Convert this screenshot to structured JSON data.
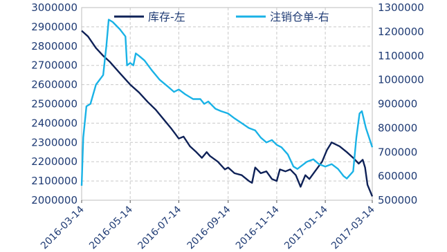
{
  "colors": {
    "series_inventory": "#0e2157",
    "series_cancelled": "#19b2e6",
    "axis_text": "#1f3b74",
    "grid": "#c8c8c8"
  },
  "chart_data": {
    "type": "line",
    "title": "",
    "xlabel": "",
    "ylabel_left": "",
    "ylabel_right": "",
    "ylim_left": [
      2000000,
      3000000
    ],
    "ylim_right": [
      500000,
      1300000
    ],
    "yticks_left": [
      "3000000",
      "2900000",
      "2800000",
      "2700000",
      "2600000",
      "2500000",
      "2400000",
      "2300000",
      "2200000",
      "2100000",
      "2000000"
    ],
    "yticks_right": [
      "1300000",
      "1200000",
      "1100000",
      "1000000",
      "900000",
      "800000",
      "700000",
      "600000",
      "500000"
    ],
    "x_tick_labels": [
      "2016-03-14",
      "2016-05-14",
      "2016-07-14",
      "2016-09-14",
      "2016-11-14",
      "2017-01-14",
      "2017-03-14"
    ],
    "xlim": [
      "2016-03-14",
      "2017-03-14"
    ],
    "grid": true,
    "legend": {
      "placement": "top",
      "entries": [
        "库存-左",
        "注销仓单-右"
      ]
    },
    "series": [
      {
        "name": "库存-左",
        "axis": "left",
        "points": [
          [
            "2016-03-14",
            2880000
          ],
          [
            "2016-03-22",
            2850000
          ],
          [
            "2016-04-01",
            2790000
          ],
          [
            "2016-04-10",
            2750000
          ],
          [
            "2016-04-18",
            2720000
          ],
          [
            "2016-05-01",
            2660000
          ],
          [
            "2016-05-14",
            2600000
          ],
          [
            "2016-05-25",
            2560000
          ],
          [
            "2016-06-05",
            2510000
          ],
          [
            "2016-06-15",
            2470000
          ],
          [
            "2016-06-25",
            2420000
          ],
          [
            "2016-07-05",
            2370000
          ],
          [
            "2016-07-14",
            2320000
          ],
          [
            "2016-07-20",
            2330000
          ],
          [
            "2016-07-28",
            2280000
          ],
          [
            "2016-08-05",
            2250000
          ],
          [
            "2016-08-12",
            2220000
          ],
          [
            "2016-08-18",
            2250000
          ],
          [
            "2016-08-22",
            2230000
          ],
          [
            "2016-09-01",
            2200000
          ],
          [
            "2016-09-10",
            2160000
          ],
          [
            "2016-09-14",
            2170000
          ],
          [
            "2016-09-22",
            2140000
          ],
          [
            "2016-10-01",
            2130000
          ],
          [
            "2016-10-10",
            2100000
          ],
          [
            "2016-10-14",
            2090000
          ],
          [
            "2016-10-18",
            2170000
          ],
          [
            "2016-10-25",
            2140000
          ],
          [
            "2016-11-01",
            2150000
          ],
          [
            "2016-11-08",
            2110000
          ],
          [
            "2016-11-14",
            2100000
          ],
          [
            "2016-11-18",
            2160000
          ],
          [
            "2016-11-25",
            2150000
          ],
          [
            "2016-12-01",
            2160000
          ],
          [
            "2016-12-08",
            2130000
          ],
          [
            "2016-12-14",
            2070000
          ],
          [
            "2016-12-20",
            2130000
          ],
          [
            "2016-12-25",
            2110000
          ],
          [
            "2017-01-01",
            2150000
          ],
          [
            "2017-01-10",
            2200000
          ],
          [
            "2017-01-16",
            2260000
          ],
          [
            "2017-01-22",
            2300000
          ],
          [
            "2017-02-01",
            2280000
          ],
          [
            "2017-02-10",
            2250000
          ],
          [
            "2017-02-18",
            2220000
          ],
          [
            "2017-02-25",
            2190000
          ],
          [
            "2017-03-02",
            2210000
          ],
          [
            "2017-03-05",
            2170000
          ],
          [
            "2017-03-08",
            2080000
          ],
          [
            "2017-03-14",
            2020000
          ]
        ]
      },
      {
        "name": "注销仓单-右",
        "axis": "right",
        "points": [
          [
            "2016-03-14",
            560000
          ],
          [
            "2016-03-16",
            760000
          ],
          [
            "2016-03-20",
            890000
          ],
          [
            "2016-03-25",
            900000
          ],
          [
            "2016-04-01",
            980000
          ],
          [
            "2016-04-10",
            1020000
          ],
          [
            "2016-04-14",
            1140000
          ],
          [
            "2016-04-17",
            1250000
          ],
          [
            "2016-04-22",
            1240000
          ],
          [
            "2016-05-01",
            1210000
          ],
          [
            "2016-05-08",
            1180000
          ],
          [
            "2016-05-10",
            1060000
          ],
          [
            "2016-05-14",
            1070000
          ],
          [
            "2016-05-18",
            1060000
          ],
          [
            "2016-05-21",
            1110000
          ],
          [
            "2016-05-25",
            1100000
          ],
          [
            "2016-06-01",
            1080000
          ],
          [
            "2016-06-10",
            1040000
          ],
          [
            "2016-06-20",
            1000000
          ],
          [
            "2016-07-01",
            970000
          ],
          [
            "2016-07-08",
            950000
          ],
          [
            "2016-07-14",
            960000
          ],
          [
            "2016-07-22",
            940000
          ],
          [
            "2016-08-01",
            920000
          ],
          [
            "2016-08-10",
            920000
          ],
          [
            "2016-08-15",
            900000
          ],
          [
            "2016-08-20",
            910000
          ],
          [
            "2016-08-29",
            880000
          ],
          [
            "2016-09-05",
            870000
          ],
          [
            "2016-09-14",
            860000
          ],
          [
            "2016-09-22",
            840000
          ],
          [
            "2016-10-01",
            820000
          ],
          [
            "2016-10-10",
            800000
          ],
          [
            "2016-10-18",
            790000
          ],
          [
            "2016-10-25",
            760000
          ],
          [
            "2016-11-01",
            740000
          ],
          [
            "2016-11-08",
            750000
          ],
          [
            "2016-11-14",
            730000
          ],
          [
            "2016-11-20",
            720000
          ],
          [
            "2016-11-28",
            690000
          ],
          [
            "2016-12-05",
            640000
          ],
          [
            "2016-12-10",
            630000
          ],
          [
            "2016-12-14",
            640000
          ],
          [
            "2016-12-22",
            660000
          ],
          [
            "2016-12-30",
            670000
          ],
          [
            "2017-01-06",
            650000
          ],
          [
            "2017-01-14",
            640000
          ],
          [
            "2017-01-22",
            650000
          ],
          [
            "2017-01-30",
            630000
          ],
          [
            "2017-02-06",
            600000
          ],
          [
            "2017-02-10",
            590000
          ],
          [
            "2017-02-18",
            620000
          ],
          [
            "2017-02-22",
            760000
          ],
          [
            "2017-02-26",
            860000
          ],
          [
            "2017-03-01",
            870000
          ],
          [
            "2017-03-06",
            800000
          ],
          [
            "2017-03-14",
            720000
          ]
        ]
      }
    ]
  }
}
